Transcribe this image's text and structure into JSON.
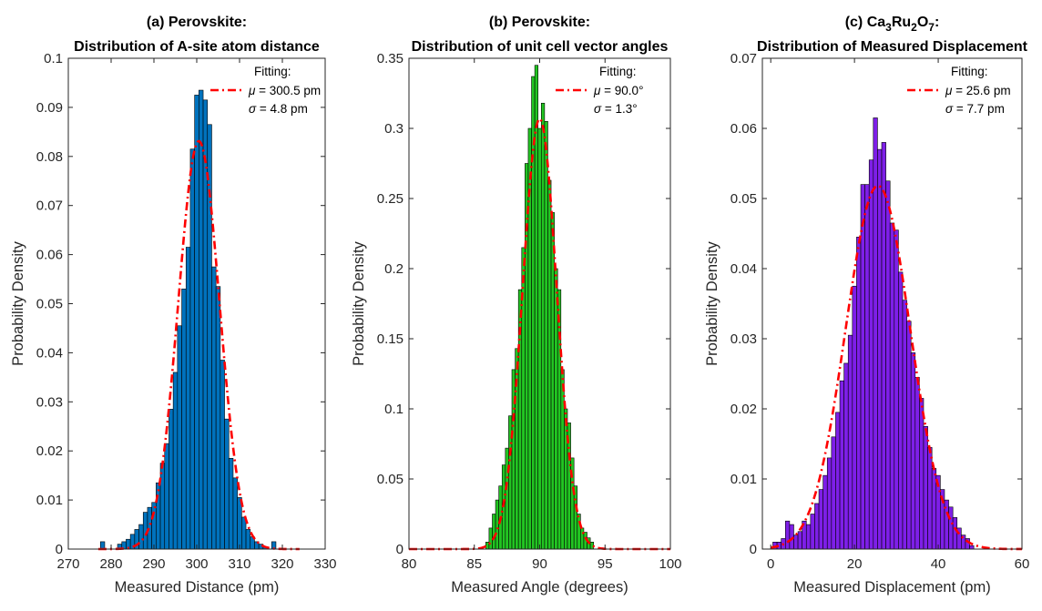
{
  "colors": {
    "a_bar": "#0072BD",
    "b_bar": "#22C522",
    "c_bar": "#7E1FE8",
    "fit_line": "#FF0000",
    "axis": "#262626"
  },
  "chart_data": [
    {
      "type": "bar",
      "title_lines": [
        "(a) Perovskite:",
        "Distribution of A-site atom distance"
      ],
      "xlabel": "Measured Distance (pm)",
      "ylabel": "Probability Density",
      "xlim": [
        270,
        330
      ],
      "ylim": [
        0,
        0.1
      ],
      "xticks": [
        "270",
        "280",
        "290",
        "300",
        "310",
        "320",
        "330"
      ],
      "yticks": [
        "0",
        "0.01",
        "0.02",
        "0.03",
        "0.04",
        "0.05",
        "0.06",
        "0.07",
        "0.08",
        "0.09",
        "0.1"
      ],
      "bin_width": 1,
      "bins": [
        {
          "x": 278,
          "y": 0.0015
        },
        {
          "x": 282,
          "y": 0.001
        },
        {
          "x": 283,
          "y": 0.0015
        },
        {
          "x": 284,
          "y": 0.002
        },
        {
          "x": 285,
          "y": 0.003
        },
        {
          "x": 286,
          "y": 0.004
        },
        {
          "x": 287,
          "y": 0.005
        },
        {
          "x": 288,
          "y": 0.0075
        },
        {
          "x": 289,
          "y": 0.0085
        },
        {
          "x": 290,
          "y": 0.0095
        },
        {
          "x": 291,
          "y": 0.0135
        },
        {
          "x": 292,
          "y": 0.0175
        },
        {
          "x": 293,
          "y": 0.0215
        },
        {
          "x": 294,
          "y": 0.0285
        },
        {
          "x": 295,
          "y": 0.036
        },
        {
          "x": 296,
          "y": 0.0455
        },
        {
          "x": 297,
          "y": 0.053
        },
        {
          "x": 298,
          "y": 0.0615
        },
        {
          "x": 299,
          "y": 0.0815
        },
        {
          "x": 300,
          "y": 0.0925
        },
        {
          "x": 301,
          "y": 0.0935
        },
        {
          "x": 302,
          "y": 0.0915
        },
        {
          "x": 303,
          "y": 0.0865
        },
        {
          "x": 304,
          "y": 0.0575
        },
        {
          "x": 305,
          "y": 0.0535
        },
        {
          "x": 306,
          "y": 0.0385
        },
        {
          "x": 307,
          "y": 0.0265
        },
        {
          "x": 308,
          "y": 0.0185
        },
        {
          "x": 309,
          "y": 0.0145
        },
        {
          "x": 310,
          "y": 0.0105
        },
        {
          "x": 311,
          "y": 0.0065
        },
        {
          "x": 312,
          "y": 0.004
        },
        {
          "x": 313,
          "y": 0.0025
        },
        {
          "x": 314,
          "y": 0.0015
        },
        {
          "x": 315,
          "y": 0.001
        },
        {
          "x": 316,
          "y": 0.0005
        },
        {
          "x": 318,
          "y": 0.0015
        }
      ],
      "fit": {
        "mu": 300.5,
        "sigma": 4.8,
        "range": [
          277,
          324
        ]
      },
      "legend": {
        "title": "Fitting:",
        "mu_label": "300.5 pm",
        "sigma_label": "4.8 pm",
        "position": "top-right"
      }
    },
    {
      "type": "bar",
      "title_lines": [
        "(b) Perovskite:",
        "Distribution of unit cell vector angles"
      ],
      "xlabel": "Measured Angle (degrees)",
      "ylabel": "Probability Density",
      "xlim": [
        80,
        100
      ],
      "ylim": [
        0,
        0.35
      ],
      "xticks": [
        "80",
        "85",
        "90",
        "95",
        "100"
      ],
      "yticks": [
        "0",
        "0.05",
        "0.1",
        "0.15",
        "0.2",
        "0.25",
        "0.3",
        "0.35"
      ],
      "bin_width": 0.25,
      "bins": [
        {
          "x": 86.0,
          "y": 0.005
        },
        {
          "x": 86.25,
          "y": 0.015
        },
        {
          "x": 86.5,
          "y": 0.025
        },
        {
          "x": 86.75,
          "y": 0.035
        },
        {
          "x": 87.0,
          "y": 0.045
        },
        {
          "x": 87.25,
          "y": 0.06
        },
        {
          "x": 87.5,
          "y": 0.072
        },
        {
          "x": 87.75,
          "y": 0.095
        },
        {
          "x": 88.0,
          "y": 0.128
        },
        {
          "x": 88.25,
          "y": 0.143
        },
        {
          "x": 88.5,
          "y": 0.185
        },
        {
          "x": 88.75,
          "y": 0.215
        },
        {
          "x": 89.0,
          "y": 0.275
        },
        {
          "x": 89.25,
          "y": 0.3
        },
        {
          "x": 89.5,
          "y": 0.337
        },
        {
          "x": 89.75,
          "y": 0.345
        },
        {
          "x": 90.0,
          "y": 0.3
        },
        {
          "x": 90.25,
          "y": 0.318
        },
        {
          "x": 90.5,
          "y": 0.305
        },
        {
          "x": 90.75,
          "y": 0.263
        },
        {
          "x": 91.0,
          "y": 0.24
        },
        {
          "x": 91.25,
          "y": 0.2
        },
        {
          "x": 91.5,
          "y": 0.185
        },
        {
          "x": 91.75,
          "y": 0.128
        },
        {
          "x": 92.0,
          "y": 0.1
        },
        {
          "x": 92.25,
          "y": 0.09
        },
        {
          "x": 92.5,
          "y": 0.065
        },
        {
          "x": 92.75,
          "y": 0.045
        },
        {
          "x": 93.0,
          "y": 0.025
        },
        {
          "x": 93.25,
          "y": 0.015
        },
        {
          "x": 93.5,
          "y": 0.012
        },
        {
          "x": 93.75,
          "y": 0.008
        },
        {
          "x": 94.0,
          "y": 0.005
        }
      ],
      "fit": {
        "mu": 90.0,
        "sigma": 1.3,
        "range": [
          80,
          100
        ]
      },
      "legend": {
        "title": "Fitting:",
        "mu_label": "90.0°",
        "sigma_label": "1.3°",
        "position": "top-right"
      }
    },
    {
      "type": "bar",
      "title_lines": [
        "(c) Ca3Ru2O7:",
        "Distribution of Measured Displacement"
      ],
      "title_main_plain": "(c) Ca",
      "title_formula": [
        {
          "text": "Ca",
          "sub": false
        },
        {
          "text": "3",
          "sub": true
        },
        {
          "text": "Ru",
          "sub": false
        },
        {
          "text": "2",
          "sub": true
        },
        {
          "text": "O",
          "sub": false
        },
        {
          "text": "7",
          "sub": true
        },
        {
          "text": ":",
          "sub": false
        }
      ],
      "title_prefix": "(c) ",
      "title_line2": "Distribution of Measured Displacement",
      "xlabel": "Measured Displacement (pm)",
      "ylabel": "Probability Density",
      "xlim": [
        -2,
        60
      ],
      "ylim": [
        0,
        0.07
      ],
      "xticks": [
        "0",
        "20",
        "40",
        "60"
      ],
      "xtick_values": [
        0,
        20,
        40,
        60
      ],
      "yticks": [
        "0",
        "0.01",
        "0.02",
        "0.03",
        "0.04",
        "0.05",
        "0.06",
        "0.07"
      ],
      "bin_width": 1,
      "bins": [
        {
          "x": 1,
          "y": 0.001
        },
        {
          "x": 2,
          "y": 0.001
        },
        {
          "x": 3,
          "y": 0.0015
        },
        {
          "x": 4,
          "y": 0.004
        },
        {
          "x": 5,
          "y": 0.0035
        },
        {
          "x": 6,
          "y": 0.002
        },
        {
          "x": 7,
          "y": 0.0025
        },
        {
          "x": 8,
          "y": 0.004
        },
        {
          "x": 9,
          "y": 0.0035
        },
        {
          "x": 10,
          "y": 0.005
        },
        {
          "x": 11,
          "y": 0.0065
        },
        {
          "x": 12,
          "y": 0.0085
        },
        {
          "x": 13,
          "y": 0.0105
        },
        {
          "x": 14,
          "y": 0.013
        },
        {
          "x": 15,
          "y": 0.016
        },
        {
          "x": 16,
          "y": 0.0195
        },
        {
          "x": 17,
          "y": 0.024
        },
        {
          "x": 18,
          "y": 0.0265
        },
        {
          "x": 19,
          "y": 0.0305
        },
        {
          "x": 20,
          "y": 0.0375
        },
        {
          "x": 21,
          "y": 0.0445
        },
        {
          "x": 22,
          "y": 0.052
        },
        {
          "x": 23,
          "y": 0.052
        },
        {
          "x": 24,
          "y": 0.0555
        },
        {
          "x": 25,
          "y": 0.0615
        },
        {
          "x": 26,
          "y": 0.057
        },
        {
          "x": 27,
          "y": 0.058
        },
        {
          "x": 28,
          "y": 0.0525
        },
        {
          "x": 29,
          "y": 0.0465
        },
        {
          "x": 30,
          "y": 0.0455
        },
        {
          "x": 31,
          "y": 0.0395
        },
        {
          "x": 32,
          "y": 0.0355
        },
        {
          "x": 33,
          "y": 0.0325
        },
        {
          "x": 34,
          "y": 0.028
        },
        {
          "x": 35,
          "y": 0.0245
        },
        {
          "x": 36,
          "y": 0.0215
        },
        {
          "x": 37,
          "y": 0.0175
        },
        {
          "x": 38,
          "y": 0.0145
        },
        {
          "x": 39,
          "y": 0.0115
        },
        {
          "x": 40,
          "y": 0.0105
        },
        {
          "x": 41,
          "y": 0.0085
        },
        {
          "x": 42,
          "y": 0.007
        },
        {
          "x": 43,
          "y": 0.006
        },
        {
          "x": 44,
          "y": 0.0045
        },
        {
          "x": 45,
          "y": 0.003
        },
        {
          "x": 46,
          "y": 0.002
        },
        {
          "x": 47,
          "y": 0.0015
        },
        {
          "x": 48,
          "y": 0.0005
        }
      ],
      "fit": {
        "mu": 25.6,
        "sigma": 7.7,
        "range": [
          0,
          60
        ]
      },
      "legend": {
        "title": "Fitting:",
        "mu_label": "25.6 pm",
        "sigma_label": "7.7 pm",
        "position": "top-right"
      }
    }
  ]
}
